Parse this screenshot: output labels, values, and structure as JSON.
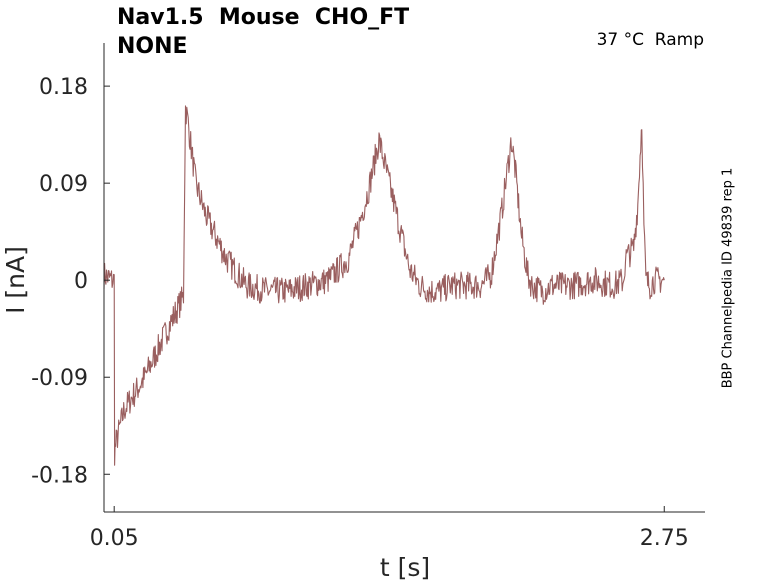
{
  "title_lines": [
    "Nav1.5  Mouse  CHO_FT",
    "NONE"
  ],
  "condition_label": "37 °C  Ramp",
  "side_label": "BBP Channelpedia ID 49839 rep 1",
  "colors": {
    "trace": "#9a5f5f",
    "axis": "#262626",
    "text": "#000000"
  },
  "chart_data": {
    "type": "line",
    "xlabel": "t [s]",
    "ylabel": "I [nA]",
    "xlim": [
      0.0,
      2.95
    ],
    "ylim": [
      -0.215,
      0.22
    ],
    "x_ticks": [
      0.05,
      2.75
    ],
    "x_tick_labels": [
      "0.05",
      "2.75"
    ],
    "y_ticks": [
      0.18,
      0.09,
      0,
      -0.09,
      -0.18
    ],
    "y_tick_labels": [
      "0.18",
      "0.09",
      "0",
      "-0.09",
      "-0.18"
    ],
    "grid": false,
    "series": [
      {
        "noise_amplitude": 0.013,
        "x": [
          0.0,
          0.04,
          0.05,
          0.052,
          0.06,
          0.1,
          0.2,
          0.3,
          0.39,
          0.4,
          0.41,
          0.45,
          0.5,
          0.6,
          0.7,
          0.8,
          0.9,
          1.0,
          1.1,
          1.2,
          1.25,
          1.3,
          1.35,
          1.4,
          1.45,
          1.5,
          1.55,
          1.6,
          1.65,
          1.7,
          1.75,
          1.85,
          1.9,
          1.95,
          2.0,
          2.02,
          2.05,
          2.08,
          2.1,
          2.15,
          2.2,
          2.3,
          2.4,
          2.5,
          2.55,
          2.56,
          2.6,
          2.62,
          2.64,
          2.65,
          2.66,
          2.68,
          2.7,
          2.75
        ],
        "y": [
          0.005,
          0.0,
          0.0,
          -0.16,
          -0.15,
          -0.12,
          -0.09,
          -0.05,
          -0.015,
          0.16,
          0.15,
          0.09,
          0.06,
          0.02,
          -0.005,
          -0.01,
          -0.01,
          -0.005,
          0.0,
          0.02,
          0.05,
          0.085,
          0.13,
          0.09,
          0.05,
          0.01,
          -0.005,
          -0.01,
          -0.01,
          -0.005,
          -0.005,
          -0.005,
          0.005,
          0.06,
          0.13,
          0.1,
          0.04,
          0.005,
          -0.005,
          -0.01,
          -0.005,
          -0.005,
          0.0,
          -0.005,
          0.0,
          0.02,
          0.03,
          0.07,
          0.15,
          0.05,
          0.0,
          -0.005,
          0.0,
          0.0
        ]
      }
    ]
  }
}
